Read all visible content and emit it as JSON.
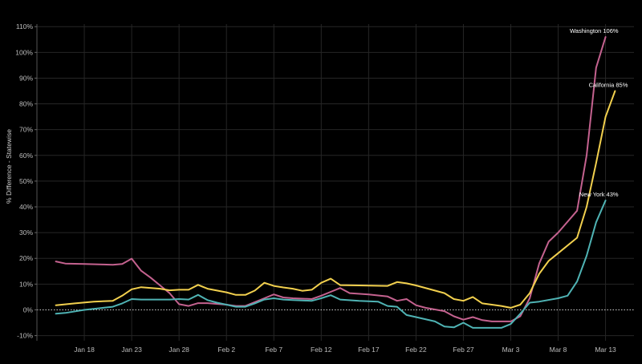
{
  "chart_data": {
    "type": "line",
    "ylabel": "% Difference - Statewise",
    "xlabel": "",
    "ylim": [
      -12,
      111
    ],
    "y_ticks": [
      -10,
      0,
      10,
      20,
      30,
      40,
      50,
      60,
      70,
      80,
      90,
      100,
      110
    ],
    "y_tick_labels": [
      "-10%",
      "0%",
      "10%",
      "20%",
      "30%",
      "40%",
      "50%",
      "60%",
      "70%",
      "80%",
      "90%",
      "100%",
      "110%"
    ],
    "x_ticks": [
      "2020-01-18",
      "2020-01-23",
      "2020-01-28",
      "2020-02-02",
      "2020-02-07",
      "2020-02-12",
      "2020-02-17",
      "2020-02-22",
      "2020-02-27",
      "2020-03-03",
      "2020-03-08",
      "2020-03-13"
    ],
    "x_tick_labels": [
      "Jan 18",
      "Jan 23",
      "Jan 28",
      "Feb 2",
      "Feb 7",
      "Feb 12",
      "Feb 17",
      "Feb 22",
      "Feb 27",
      "Mar 3",
      "Mar 8",
      "Mar 13"
    ],
    "xlim": [
      "2020-01-13",
      "2020-03-16"
    ],
    "zero_line": "dotted",
    "grid": true,
    "series": [
      {
        "name": "Washington",
        "end_label": "Washington 106%",
        "color": "#c4628f",
        "points": [
          [
            "2020-01-15",
            18.8
          ],
          [
            "2020-01-16",
            18.0
          ],
          [
            "2020-01-18",
            17.8
          ],
          [
            "2020-01-20",
            17.6
          ],
          [
            "2020-01-21",
            17.5
          ],
          [
            "2020-01-22",
            17.8
          ],
          [
            "2020-01-23",
            19.9
          ],
          [
            "2020-01-24",
            15.2
          ],
          [
            "2020-01-25",
            12.5
          ],
          [
            "2020-01-26",
            9.5
          ],
          [
            "2020-01-27",
            6.5
          ],
          [
            "2020-01-28",
            2.2
          ],
          [
            "2020-01-29",
            1.5
          ],
          [
            "2020-01-30",
            2.6
          ],
          [
            "2020-01-31",
            2.6
          ],
          [
            "2020-02-02",
            2.0
          ],
          [
            "2020-02-03",
            1.5
          ],
          [
            "2020-02-04",
            1.5
          ],
          [
            "2020-02-06",
            4.5
          ],
          [
            "2020-02-07",
            6.0
          ],
          [
            "2020-02-08",
            4.8
          ],
          [
            "2020-02-09",
            4.5
          ],
          [
            "2020-02-11",
            4.2
          ],
          [
            "2020-02-12",
            5.5
          ],
          [
            "2020-02-13",
            7.0
          ],
          [
            "2020-02-14",
            8.5
          ],
          [
            "2020-02-15",
            6.5
          ],
          [
            "2020-02-17",
            6.0
          ],
          [
            "2020-02-19",
            5.2
          ],
          [
            "2020-02-20",
            3.5
          ],
          [
            "2020-02-21",
            4.2
          ],
          [
            "2020-02-22",
            1.8
          ],
          [
            "2020-02-23",
            0.8
          ],
          [
            "2020-02-25",
            -0.5
          ],
          [
            "2020-02-26",
            -2.5
          ],
          [
            "2020-02-27",
            -3.8
          ],
          [
            "2020-02-28",
            -2.8
          ],
          [
            "2020-02-29",
            -4.0
          ],
          [
            "2020-03-01",
            -4.5
          ],
          [
            "2020-03-03",
            -4.5
          ],
          [
            "2020-03-04",
            -2.5
          ],
          [
            "2020-03-05",
            4.5
          ],
          [
            "2020-03-06",
            18.0
          ],
          [
            "2020-03-07",
            26.5
          ],
          [
            "2020-03-08",
            30.0
          ],
          [
            "2020-03-10",
            38.5
          ],
          [
            "2020-03-11",
            60.0
          ],
          [
            "2020-03-12",
            94.0
          ],
          [
            "2020-03-13",
            106.0
          ]
        ]
      },
      {
        "name": "California",
        "end_label": "California 85%",
        "color": "#f2d04e",
        "points": [
          [
            "2020-01-15",
            1.8
          ],
          [
            "2020-01-17",
            2.5
          ],
          [
            "2020-01-19",
            3.2
          ],
          [
            "2020-01-21",
            3.5
          ],
          [
            "2020-01-22",
            5.5
          ],
          [
            "2020-01-23",
            8.0
          ],
          [
            "2020-01-24",
            8.8
          ],
          [
            "2020-01-26",
            8.2
          ],
          [
            "2020-01-27",
            7.6
          ],
          [
            "2020-01-28",
            7.8
          ],
          [
            "2020-01-29",
            7.8
          ],
          [
            "2020-01-30",
            9.7
          ],
          [
            "2020-01-31",
            8.2
          ],
          [
            "2020-02-02",
            6.8
          ],
          [
            "2020-02-03",
            5.8
          ],
          [
            "2020-02-04",
            5.8
          ],
          [
            "2020-02-05",
            7.5
          ],
          [
            "2020-02-06",
            10.5
          ],
          [
            "2020-02-07",
            9.3
          ],
          [
            "2020-02-08",
            8.7
          ],
          [
            "2020-02-09",
            8.2
          ],
          [
            "2020-02-10",
            7.4
          ],
          [
            "2020-02-11",
            7.8
          ],
          [
            "2020-02-12",
            10.5
          ],
          [
            "2020-02-13",
            12.1
          ],
          [
            "2020-02-14",
            9.6
          ],
          [
            "2020-02-16",
            9.5
          ],
          [
            "2020-02-19",
            9.3
          ],
          [
            "2020-02-20",
            10.8
          ],
          [
            "2020-02-21",
            10.3
          ],
          [
            "2020-02-22",
            9.5
          ],
          [
            "2020-02-25",
            6.5
          ],
          [
            "2020-02-26",
            4.2
          ],
          [
            "2020-02-27",
            3.5
          ],
          [
            "2020-02-28",
            5.0
          ],
          [
            "2020-02-29",
            2.5
          ],
          [
            "2020-03-02",
            1.5
          ],
          [
            "2020-03-03",
            0.8
          ],
          [
            "2020-03-04",
            2.0
          ],
          [
            "2020-03-05",
            6.5
          ],
          [
            "2020-03-06",
            14.0
          ],
          [
            "2020-03-07",
            19.0
          ],
          [
            "2020-03-08",
            22.0
          ],
          [
            "2020-03-10",
            28.0
          ],
          [
            "2020-03-11",
            40.0
          ],
          [
            "2020-03-12",
            57.0
          ],
          [
            "2020-03-13",
            75.0
          ],
          [
            "2020-03-14",
            85.0
          ]
        ]
      },
      {
        "name": "New York",
        "end_label": "New York 43%",
        "color": "#4fb3b4",
        "points": [
          [
            "2020-01-15",
            -1.5
          ],
          [
            "2020-01-16",
            -1.2
          ],
          [
            "2020-01-18",
            0.0
          ],
          [
            "2020-01-20",
            0.8
          ],
          [
            "2020-01-21",
            1.2
          ],
          [
            "2020-01-22",
            2.5
          ],
          [
            "2020-01-23",
            4.2
          ],
          [
            "2020-01-24",
            4.0
          ],
          [
            "2020-01-27",
            4.0
          ],
          [
            "2020-01-28",
            4.2
          ],
          [
            "2020-01-29",
            4.0
          ],
          [
            "2020-01-30",
            5.8
          ],
          [
            "2020-01-31",
            3.8
          ],
          [
            "2020-02-01",
            2.8
          ],
          [
            "2020-02-02",
            2.0
          ],
          [
            "2020-02-03",
            1.2
          ],
          [
            "2020-02-04",
            1.2
          ],
          [
            "2020-02-05",
            2.5
          ],
          [
            "2020-02-06",
            4.0
          ],
          [
            "2020-02-07",
            4.5
          ],
          [
            "2020-02-08",
            4.0
          ],
          [
            "2020-02-09",
            3.8
          ],
          [
            "2020-02-11",
            3.5
          ],
          [
            "2020-02-12",
            4.5
          ],
          [
            "2020-02-13",
            5.7
          ],
          [
            "2020-02-14",
            4.0
          ],
          [
            "2020-02-16",
            3.5
          ],
          [
            "2020-02-18",
            3.2
          ],
          [
            "2020-02-19",
            1.5
          ],
          [
            "2020-02-20",
            1.2
          ],
          [
            "2020-02-21",
            -2.0
          ],
          [
            "2020-02-22",
            -2.8
          ],
          [
            "2020-02-24",
            -4.5
          ],
          [
            "2020-02-25",
            -6.5
          ],
          [
            "2020-02-26",
            -6.8
          ],
          [
            "2020-02-27",
            -5.0
          ],
          [
            "2020-02-28",
            -7.0
          ],
          [
            "2020-03-01",
            -7.0
          ],
          [
            "2020-03-02",
            -7.0
          ],
          [
            "2020-03-03",
            -5.5
          ],
          [
            "2020-03-04",
            -1.5
          ],
          [
            "2020-03-05",
            2.8
          ],
          [
            "2020-03-06",
            3.2
          ],
          [
            "2020-03-08",
            4.5
          ],
          [
            "2020-03-09",
            5.5
          ],
          [
            "2020-03-10",
            11.0
          ],
          [
            "2020-03-11",
            21.0
          ],
          [
            "2020-03-12",
            34.0
          ],
          [
            "2020-03-13",
            42.5
          ]
        ]
      }
    ]
  }
}
